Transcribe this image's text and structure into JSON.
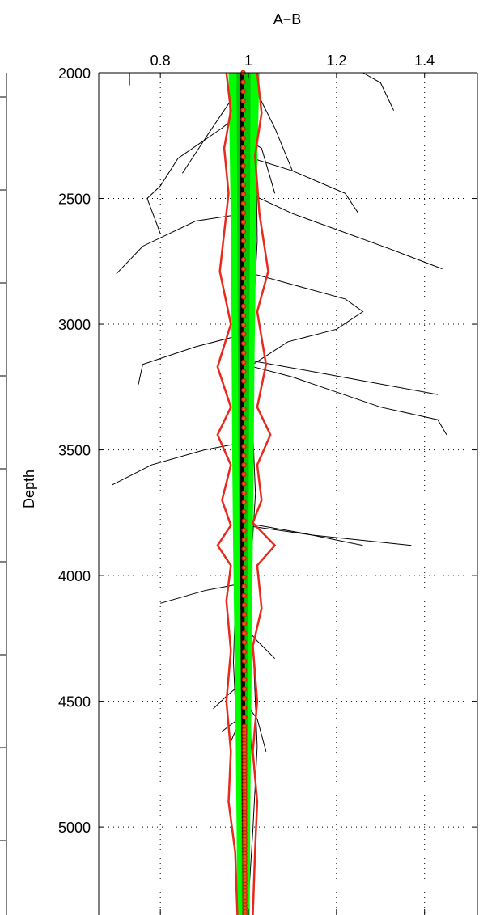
{
  "chart_data": {
    "type": "line",
    "title": "A−B",
    "xlabel": "A−B",
    "ylabel": "Depth",
    "xlim": [
      0.66,
      1.52
    ],
    "ylim": [
      2000,
      5350
    ],
    "y_reversed": true,
    "x_axis_position": "top",
    "x_ticks": [
      0.8,
      1,
      1.2,
      1.4
    ],
    "x_tick_labels": [
      "0.8",
      "1",
      "1.2",
      "1.4"
    ],
    "y_ticks": [
      2000,
      2500,
      3000,
      3500,
      4000,
      4500,
      5000
    ],
    "y_tick_labels": [
      "2000",
      "2500",
      "3000",
      "3500",
      "4000",
      "4500",
      "5000"
    ],
    "grid": true,
    "legend": "none",
    "colors": {
      "individual": "#000000",
      "median": "#000000",
      "band_inner": "#00c800",
      "band_outer": "#00ff00",
      "envelope": "#e8291c",
      "median_markers": "#c81e0a",
      "marker_fill": "#e85a14"
    },
    "series": [
      {
        "role": "individual-profiles-upper",
        "lines": [
          [
            [
              0.73,
              2000
            ],
            [
              0.73,
              2020
            ],
            [
              0.73,
              2050
            ]
          ],
          [
            [
              1.26,
              2000
            ],
            [
              1.3,
              2040
            ],
            [
              1.33,
              2150
            ]
          ],
          [
            [
              1.0,
              2000
            ],
            [
              1.02,
              2080
            ],
            [
              1.06,
              2220
            ],
            [
              1.1,
              2390
            ]
          ],
          [
            [
              0.99,
              2040
            ],
            [
              0.96,
              2110
            ],
            [
              0.91,
              2240
            ],
            [
              0.85,
              2400
            ]
          ],
          [
            [
              0.99,
              2150
            ],
            [
              0.94,
              2220
            ],
            [
              0.84,
              2340
            ],
            [
              0.8,
              2450
            ],
            [
              0.77,
              2500
            ],
            [
              0.8,
              2640
            ]
          ],
          [
            [
              0.99,
              2260
            ],
            [
              1.03,
              2300
            ],
            [
              1.06,
              2480
            ]
          ],
          [
            [
              0.99,
              2330
            ],
            [
              1.1,
              2390
            ],
            [
              1.22,
              2480
            ],
            [
              1.25,
              2560
            ]
          ],
          [
            [
              0.99,
              2560
            ],
            [
              0.88,
              2590
            ],
            [
              0.76,
              2690
            ],
            [
              0.7,
              2800
            ]
          ],
          [
            [
              0.99,
              2470
            ],
            [
              1.1,
              2560
            ],
            [
              1.32,
              2700
            ],
            [
              1.44,
              2780
            ]
          ],
          [
            [
              0.99,
              2790
            ],
            [
              1.22,
              2900
            ],
            [
              1.26,
              2950
            ],
            [
              1.2,
              3020
            ],
            [
              1.09,
              3070
            ],
            [
              1.01,
              3160
            ]
          ],
          [
            [
              0.99,
              3040
            ],
            [
              0.88,
              3090
            ],
            [
              0.76,
              3160
            ],
            [
              0.75,
              3240
            ]
          ],
          [
            [
              0.99,
              3140
            ],
            [
              1.15,
              3190
            ],
            [
              1.43,
              3280
            ]
          ],
          [
            [
              0.99,
              3160
            ],
            [
              1.1,
              3210
            ],
            [
              1.3,
              3330
            ],
            [
              1.43,
              3380
            ],
            [
              1.45,
              3440
            ]
          ],
          [
            [
              0.99,
              3470
            ],
            [
              0.9,
              3500
            ],
            [
              0.78,
              3560
            ],
            [
              0.69,
              3640
            ]
          ]
        ]
      },
      {
        "role": "individual-profiles-lower",
        "lines": [
          [
            [
              0.99,
              3790
            ],
            [
              1.12,
              3830
            ],
            [
              1.26,
              3880
            ]
          ],
          [
            [
              0.99,
              3800
            ],
            [
              1.15,
              3840
            ],
            [
              1.37,
              3880
            ]
          ],
          [
            [
              0.99,
              4030
            ],
            [
              0.9,
              4060
            ],
            [
              0.8,
              4110
            ]
          ],
          [
            [
              0.99,
              4200
            ],
            [
              1.02,
              4260
            ],
            [
              1.06,
              4330
            ]
          ],
          [
            [
              0.99,
              4420
            ],
            [
              0.95,
              4480
            ],
            [
              0.92,
              4530
            ]
          ],
          [
            [
              0.99,
              4520
            ],
            [
              0.97,
              4580
            ],
            [
              0.94,
              4620
            ]
          ],
          [
            [
              0.99,
              4560
            ],
            [
              0.97,
              4620
            ],
            [
              0.96,
              4660
            ]
          ],
          [
            [
              0.99,
              4500
            ],
            [
              1.02,
              4570
            ],
            [
              1.04,
              4700
            ]
          ]
        ]
      },
      {
        "role": "bundle-jitter",
        "profiles": [
          [
            0.972,
            0.968,
            0.966,
            0.97,
            0.964,
            0.968,
            0.972,
            0.966,
            0.975,
            0.978,
            0.98
          ],
          [
            0.996,
            1.002,
            0.992,
            0.998,
            0.99,
            0.996,
            0.986,
            0.994,
            0.988,
            0.99,
            0.988
          ],
          [
            1.012,
            1.018,
            1.02,
            1.01,
            1.008,
            1.016,
            1.004,
            1.0,
            1.006,
            0.996,
            0.992
          ],
          [
            0.984,
            0.98,
            0.976,
            0.986,
            0.98,
            0.978,
            0.984,
            0.976,
            0.982,
            0.984,
            0.985
          ],
          [
            1.004,
            1.01,
            1.012,
            1.006,
            1.012,
            0.998,
            0.996,
            1.012,
            1.02,
            1.01,
            0.998
          ]
        ]
      },
      {
        "name": "median",
        "role": "median-line",
        "points": [
          [
            0.986,
            2000
          ],
          [
            0.984,
            3000
          ],
          [
            0.986,
            4000
          ],
          [
            0.99,
            5000
          ],
          [
            0.992,
            5350
          ]
        ]
      },
      {
        "role": "band-outer",
        "left": [
          0.955,
          0.958,
          0.961,
          0.962,
          0.963,
          0.965,
          0.968,
          0.971,
          0.973,
          0.975
        ],
        "right": [
          1.025,
          1.02,
          1.017,
          1.014,
          1.012,
          1.01,
          1.008,
          1.006,
          1.004,
          1.003
        ]
      },
      {
        "role": "band-inner",
        "left": [
          0.973,
          0.974,
          0.975,
          0.976,
          0.977,
          0.979,
          0.981,
          0.983,
          0.984,
          0.985
        ],
        "right": [
          1.005,
          1.004,
          1.003,
          1.002,
          1.001,
          1.0,
          0.999,
          0.998,
          0.997,
          0.996
        ]
      },
      {
        "role": "envelope-left",
        "points": [
          [
            0.95,
            2000
          ],
          [
            0.96,
            2150
          ],
          [
            0.945,
            2300
          ],
          [
            0.955,
            2480
          ],
          [
            0.935,
            2790
          ],
          [
            0.96,
            3000
          ],
          [
            0.93,
            3170
          ],
          [
            0.96,
            3330
          ],
          [
            0.93,
            3440
          ],
          [
            0.96,
            3560
          ],
          [
            0.94,
            3700
          ],
          [
            0.96,
            3800
          ],
          [
            0.93,
            3880
          ],
          [
            0.96,
            3960
          ],
          [
            0.95,
            4100
          ],
          [
            0.96,
            4300
          ],
          [
            0.95,
            4500
          ],
          [
            0.96,
            4700
          ],
          [
            0.955,
            4900
          ],
          [
            0.97,
            5100
          ],
          [
            0.975,
            5350
          ]
        ]
      },
      {
        "role": "envelope-right",
        "points": [
          [
            1.02,
            2000
          ],
          [
            1.03,
            2160
          ],
          [
            1.015,
            2330
          ],
          [
            1.025,
            2560
          ],
          [
            1.045,
            2790
          ],
          [
            1.02,
            2950
          ],
          [
            1.04,
            3160
          ],
          [
            1.02,
            3330
          ],
          [
            1.05,
            3440
          ],
          [
            1.02,
            3560
          ],
          [
            1.03,
            3700
          ],
          [
            1.01,
            3790
          ],
          [
            1.06,
            3880
          ],
          [
            1.02,
            3960
          ],
          [
            1.03,
            4130
          ],
          [
            1.01,
            4280
          ],
          [
            1.02,
            4500
          ],
          [
            1.01,
            4700
          ],
          [
            1.02,
            4900
          ],
          [
            1.015,
            5100
          ],
          [
            1.01,
            5350
          ]
        ]
      },
      {
        "role": "median-markers",
        "start": 2000,
        "end": 5350,
        "x_top": 0.988,
        "x_bottom": 0.992
      }
    ]
  }
}
